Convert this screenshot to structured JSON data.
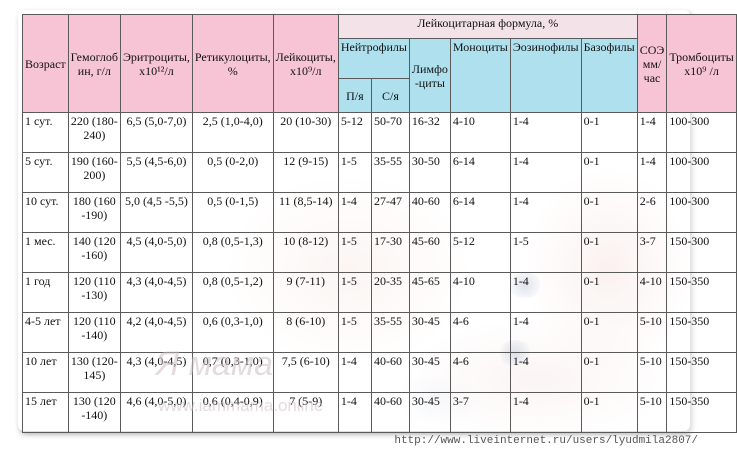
{
  "table": {
    "header_group": "Лейкоцитарная формула, %",
    "neutro_group": "Нейтрофилы",
    "columns": {
      "age": "Возраст",
      "hgb": "Гемоглоб ин, г/л",
      "rbc": "Эритроциты, х10¹²/л",
      "ret": "Ретикулоциты, %",
      "wbc": "Лейкоциты, х10⁹/л",
      "band": "П/я",
      "seg": "С/я",
      "lym": "Лимфо -циты",
      "mon": "Моноциты",
      "eos": "Эозинофилы",
      "bas": "Базофилы",
      "esr": "СОЭ мм/час",
      "plt": "Тромбоциты х10⁹ /л"
    },
    "rows": [
      {
        "age": "1 сут.",
        "hgb": "220 (180-240)",
        "rbc": "6,5 (5,0-7,0)",
        "ret": "2,5 (1,0-4,0)",
        "wbc": "20 (10-30)",
        "band": "5-12",
        "seg": "50-70",
        "lym": "16-32",
        "mon": "4-10",
        "eos": "1-4",
        "bas": "0-1",
        "esr": "1-4",
        "plt": "100-300"
      },
      {
        "age": "5 сут.",
        "hgb": "190 (160-200)",
        "rbc": "5,5 (4,5-6,0)",
        "ret": "0,5 (0-2,0)",
        "wbc": "12 (9-15)",
        "band": "1-5",
        "seg": "35-55",
        "lym": "30-50",
        "mon": "6-14",
        "eos": "1-4",
        "bas": "0-1",
        "esr": "1-4",
        "plt": "100-300"
      },
      {
        "age": "10 сут.",
        "hgb": "180 (160 -190)",
        "rbc": "5,0 (4,5 -5,5)",
        "ret": "0,5 (0-1,5)",
        "wbc": "11 (8,5-14)",
        "band": "1-4",
        "seg": "27-47",
        "lym": "40-60",
        "mon": "6-14",
        "eos": "1-4",
        "bas": "0-1",
        "esr": "2-6",
        "plt": "100-300"
      },
      {
        "age": "1 мес.",
        "hgb": "140 (120 -160)",
        "rbc": "4,5 (4,0-5,0)",
        "ret": "0,8 (0,5-1,3)",
        "wbc": "10 (8-12)",
        "band": "1-5",
        "seg": "17-30",
        "lym": "45-60",
        "mon": "5-12",
        "eos": "1-5",
        "bas": "0-1",
        "esr": "3-7",
        "plt": "150-300"
      },
      {
        "age": "1 год",
        "hgb": "120 (110 -130)",
        "rbc": "4,3 (4,0-4,5)",
        "ret": "0,8 (0,5-1,2)",
        "wbc": "9 (7-11)",
        "band": "1-5",
        "seg": "20-35",
        "lym": "45-65",
        "mon": "4-10",
        "eos": "1-4",
        "bas": "0-1",
        "esr": "4-10",
        "plt": "150-350"
      },
      {
        "age": "4-5 лет",
        "hgb": "120 (110 -140)",
        "rbc": "4,2 (4,0-4,5)",
        "ret": "0,6 (0,3-1,0)",
        "wbc": "8 (6-10)",
        "band": "1-5",
        "seg": "35-55",
        "lym": "30-45",
        "mon": "4-6",
        "eos": "1-4",
        "bas": "0-1",
        "esr": "5-10",
        "plt": "150-350"
      },
      {
        "age": "10 лет",
        "hgb": "130 (120-145)",
        "rbc": "4,3 (4,0-4,5)",
        "ret": "0,7 (0,3-1,0)",
        "wbc": "7,5 (6-10)",
        "band": "1-4",
        "seg": "40-60",
        "lym": "30-45",
        "mon": "4-6",
        "eos": "1-4",
        "bas": "0-1",
        "esr": "5-10",
        "plt": "150-350"
      },
      {
        "age": "15 лет",
        "hgb": "130 (120 -140)",
        "rbc": "4,6 (4,0-5,0)",
        "ret": "0,6 (0,4-0,9)",
        "wbc": "7 (5-9)",
        "band": "1-4",
        "seg": "40-60",
        "lym": "30-45",
        "mon": "3-7",
        "eos": "1-4",
        "bas": "0-1",
        "esr": "5-10",
        "plt": "150-350"
      }
    ]
  },
  "watermark": {
    "brand": "Я мама",
    "site": "www.iammama.online"
  },
  "source_url": "http://www.liveinternet.ru/users/lyudmila2807/",
  "colors": {
    "header_pink": "#f6c4d4",
    "header_blue": "#aee0ee"
  }
}
